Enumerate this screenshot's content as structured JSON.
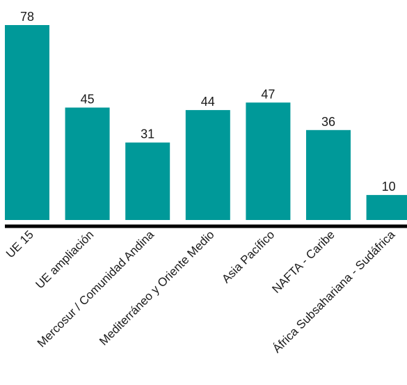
{
  "chart_data": {
    "type": "bar",
    "categories": [
      "UE 15",
      "UE ampliación",
      "Mercosur / Comunidad Andina",
      "Mediterráneo y Oriente Medio",
      "Asia Pacífico",
      "NAFTA - Caribe",
      "África Subsahariana - Sudáfrica"
    ],
    "values": [
      78,
      45,
      31,
      44,
      47,
      36,
      10
    ],
    "value_labels": [
      "78",
      "45",
      "31",
      "44",
      "47",
      "36",
      "10"
    ],
    "title": "",
    "xlabel": "",
    "ylabel": "",
    "ylim": [
      0,
      78
    ],
    "grid": false,
    "legend": "none",
    "colors": {
      "bar": "#009999",
      "axis": "#000000",
      "text": "#1a1a1a"
    }
  }
}
